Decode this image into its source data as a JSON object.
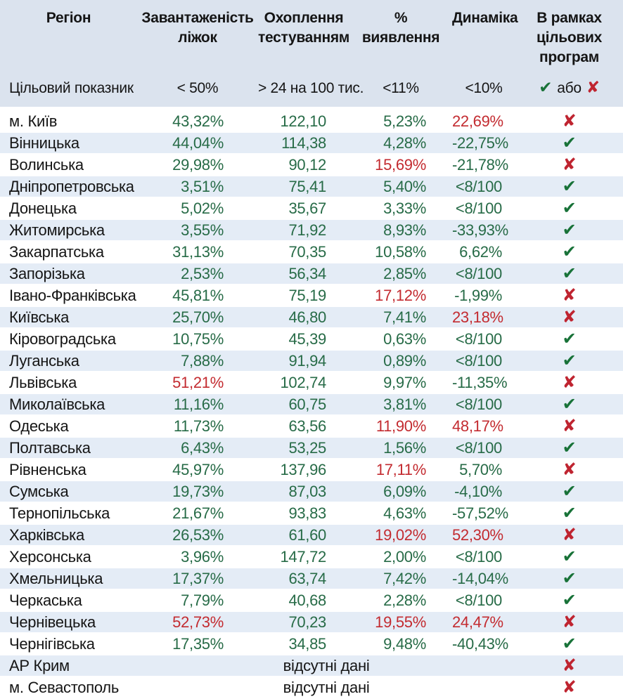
{
  "colors": {
    "header_bg": "#dbe3ee",
    "row_alt_bg": "#e4ecf6",
    "green": "#276b47",
    "red": "#c32b30",
    "check_green": "#187238",
    "cross_red": "#bf2430"
  },
  "chart_data": {
    "type": "table",
    "columns": [
      "Регіон",
      "Завантаженість\nліжок",
      "Охоплення\nтестуванням",
      "%\nвиявлення",
      "Динаміка",
      "В рамках\nцільових\nпрограм"
    ],
    "target_row": {
      "label": "Цільовий показник",
      "bed_occupancy": "< 50%",
      "testing_coverage": "> 24 на 100 тис.",
      "detection_rate": "<11%",
      "dynamics": "<10%",
      "program_or": "або"
    },
    "marks": {
      "check": "✔",
      "cross": "✘"
    },
    "no_data_text": "відсутні дані",
    "rows": [
      {
        "region": "м. Київ",
        "values": [
          [
            "43,32%",
            "ok"
          ],
          [
            "122,10",
            "ok"
          ],
          [
            "5,23%",
            "ok"
          ],
          [
            "22,69%",
            "bad"
          ]
        ],
        "program": "cross"
      },
      {
        "region": "Вінницька",
        "values": [
          [
            "44,04%",
            "ok"
          ],
          [
            "114,38",
            "ok"
          ],
          [
            "4,28%",
            "ok"
          ],
          [
            "-22,75%",
            "ok"
          ]
        ],
        "program": "check"
      },
      {
        "region": "Волинська",
        "values": [
          [
            "29,98%",
            "ok"
          ],
          [
            "90,12",
            "ok"
          ],
          [
            "15,69%",
            "bad"
          ],
          [
            "-21,78%",
            "ok"
          ]
        ],
        "program": "cross"
      },
      {
        "region": "Дніпропетровська",
        "values": [
          [
            "3,51%",
            "ok"
          ],
          [
            "75,41",
            "ok"
          ],
          [
            "5,40%",
            "ok"
          ],
          [
            "<8/100",
            "ok"
          ]
        ],
        "program": "check"
      },
      {
        "region": "Донецька",
        "values": [
          [
            "5,02%",
            "ok"
          ],
          [
            "35,67",
            "ok"
          ],
          [
            "3,33%",
            "ok"
          ],
          [
            "<8/100",
            "ok"
          ]
        ],
        "program": "check"
      },
      {
        "region": "Житомирська",
        "values": [
          [
            "3,55%",
            "ok"
          ],
          [
            "71,92",
            "ok"
          ],
          [
            "8,93%",
            "ok"
          ],
          [
            "-33,93%",
            "ok"
          ]
        ],
        "program": "check"
      },
      {
        "region": "Закарпатська",
        "values": [
          [
            "31,13%",
            "ok"
          ],
          [
            "70,35",
            "ok"
          ],
          [
            "10,58%",
            "ok"
          ],
          [
            "6,62%",
            "ok"
          ]
        ],
        "program": "check"
      },
      {
        "region": "Запорізька",
        "values": [
          [
            "2,53%",
            "ok"
          ],
          [
            "56,34",
            "ok"
          ],
          [
            "2,85%",
            "ok"
          ],
          [
            "<8/100",
            "ok"
          ]
        ],
        "program": "check"
      },
      {
        "region": "Івано-Франківська",
        "values": [
          [
            "45,81%",
            "ok"
          ],
          [
            "75,19",
            "ok"
          ],
          [
            "17,12%",
            "bad"
          ],
          [
            "-1,99%",
            "ok"
          ]
        ],
        "program": "cross"
      },
      {
        "region": "Київська",
        "values": [
          [
            "25,70%",
            "ok"
          ],
          [
            "46,80",
            "ok"
          ],
          [
            "7,41%",
            "ok"
          ],
          [
            "23,18%",
            "bad"
          ]
        ],
        "program": "cross"
      },
      {
        "region": "Кіровоградська",
        "values": [
          [
            "10,75%",
            "ok"
          ],
          [
            "45,39",
            "ok"
          ],
          [
            "0,63%",
            "ok"
          ],
          [
            "<8/100",
            "ok"
          ]
        ],
        "program": "check"
      },
      {
        "region": "Луганська",
        "values": [
          [
            "7,88%",
            "ok"
          ],
          [
            "91,94",
            "ok"
          ],
          [
            "0,89%",
            "ok"
          ],
          [
            "<8/100",
            "ok"
          ]
        ],
        "program": "check"
      },
      {
        "region": "Львівська",
        "values": [
          [
            "51,21%",
            "bad"
          ],
          [
            "102,74",
            "ok"
          ],
          [
            "9,97%",
            "ok"
          ],
          [
            "-11,35%",
            "ok"
          ]
        ],
        "program": "cross"
      },
      {
        "region": "Миколаївська",
        "values": [
          [
            "11,16%",
            "ok"
          ],
          [
            "60,75",
            "ok"
          ],
          [
            "3,81%",
            "ok"
          ],
          [
            "<8/100",
            "ok"
          ]
        ],
        "program": "check"
      },
      {
        "region": "Одеська",
        "values": [
          [
            "11,73%",
            "ok"
          ],
          [
            "63,56",
            "ok"
          ],
          [
            "11,90%",
            "bad"
          ],
          [
            "48,17%",
            "bad"
          ]
        ],
        "program": "cross"
      },
      {
        "region": "Полтавська",
        "values": [
          [
            "6,43%",
            "ok"
          ],
          [
            "53,25",
            "ok"
          ],
          [
            "1,56%",
            "ok"
          ],
          [
            "<8/100",
            "ok"
          ]
        ],
        "program": "check"
      },
      {
        "region": "Рівненська",
        "values": [
          [
            "45,97%",
            "ok"
          ],
          [
            "137,96",
            "ok"
          ],
          [
            "17,11%",
            "bad"
          ],
          [
            "5,70%",
            "ok"
          ]
        ],
        "program": "cross"
      },
      {
        "region": "Сумська",
        "values": [
          [
            "19,73%",
            "ok"
          ],
          [
            "87,03",
            "ok"
          ],
          [
            "6,09%",
            "ok"
          ],
          [
            "-4,10%",
            "ok"
          ]
        ],
        "program": "check"
      },
      {
        "region": "Тернопільська",
        "values": [
          [
            "21,67%",
            "ok"
          ],
          [
            "93,83",
            "ok"
          ],
          [
            "4,63%",
            "ok"
          ],
          [
            "-57,52%",
            "ok"
          ]
        ],
        "program": "check"
      },
      {
        "region": "Харківська",
        "values": [
          [
            "26,53%",
            "ok"
          ],
          [
            "61,60",
            "ok"
          ],
          [
            "19,02%",
            "bad"
          ],
          [
            "52,30%",
            "bad"
          ]
        ],
        "program": "cross"
      },
      {
        "region": "Херсонська",
        "values": [
          [
            "3,96%",
            "ok"
          ],
          [
            "147,72",
            "ok"
          ],
          [
            "2,00%",
            "ok"
          ],
          [
            "<8/100",
            "ok"
          ]
        ],
        "program": "check"
      },
      {
        "region": "Хмельницька",
        "values": [
          [
            "17,37%",
            "ok"
          ],
          [
            "63,74",
            "ok"
          ],
          [
            "7,42%",
            "ok"
          ],
          [
            "-14,04%",
            "ok"
          ]
        ],
        "program": "check"
      },
      {
        "region": "Черкаська",
        "values": [
          [
            "7,79%",
            "ok"
          ],
          [
            "40,68",
            "ok"
          ],
          [
            "2,28%",
            "ok"
          ],
          [
            "<8/100",
            "ok"
          ]
        ],
        "program": "check"
      },
      {
        "region": "Чернівецька",
        "values": [
          [
            "52,73%",
            "bad"
          ],
          [
            "70,23",
            "ok"
          ],
          [
            "19,55%",
            "bad"
          ],
          [
            "24,47%",
            "bad"
          ]
        ],
        "program": "cross"
      },
      {
        "region": "Чернігівська",
        "values": [
          [
            "17,35%",
            "ok"
          ],
          [
            "34,85",
            "ok"
          ],
          [
            "9,48%",
            "ok"
          ],
          [
            "-40,43%",
            "ok"
          ]
        ],
        "program": "check"
      },
      {
        "region": "АР Крим",
        "no_data": true,
        "program": "cross"
      },
      {
        "region": "м. Севастополь",
        "no_data": true,
        "program": "cross"
      }
    ]
  }
}
